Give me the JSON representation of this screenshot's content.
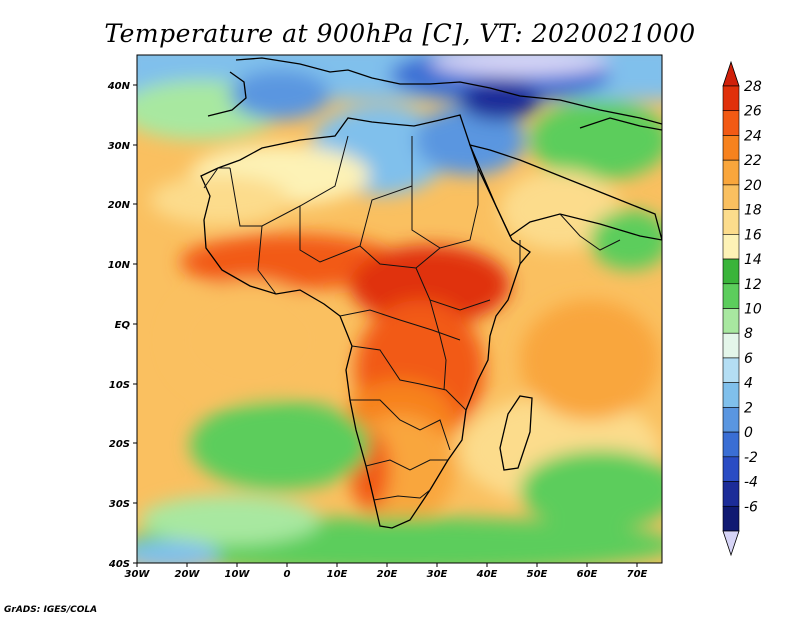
{
  "title": "Temperature at 900hPa [C], VT: 2020021000",
  "credit": "GrADS: IGES/COLA",
  "x_ticks": [
    "30W",
    "20W",
    "10W",
    "0",
    "10E",
    "20E",
    "30E",
    "40E",
    "50E",
    "60E",
    "70E"
  ],
  "y_ticks": [
    "40N",
    "30N",
    "20N",
    "10N",
    "EQ",
    "10S",
    "20S",
    "30S",
    "40S"
  ],
  "colorbar": {
    "labels": [
      "28",
      "26",
      "24",
      "22",
      "20",
      "18",
      "16",
      "14",
      "12",
      "10",
      "8",
      "6",
      "4",
      "2",
      "0",
      "-2",
      "-4",
      "-6"
    ],
    "colors": [
      "#e0300a",
      "#f25a14",
      "#f7821e",
      "#f9a63c",
      "#fac060",
      "#fcdc8c",
      "#fdf2b6",
      "#3ab43a",
      "#5ccd5c",
      "#a8e8a0",
      "#e4f6ea",
      "#b4def4",
      "#80c0ec",
      "#5a96e0",
      "#3a6ed4",
      "#2a4cc4",
      "#1c2c98",
      "#101a72"
    ],
    "low_cap_color": "#d6d4f6",
    "high_cap_color": "#d0200a"
  },
  "map": {
    "lon_range": [
      -30,
      75
    ],
    "lat_range": [
      -40,
      45
    ]
  }
}
